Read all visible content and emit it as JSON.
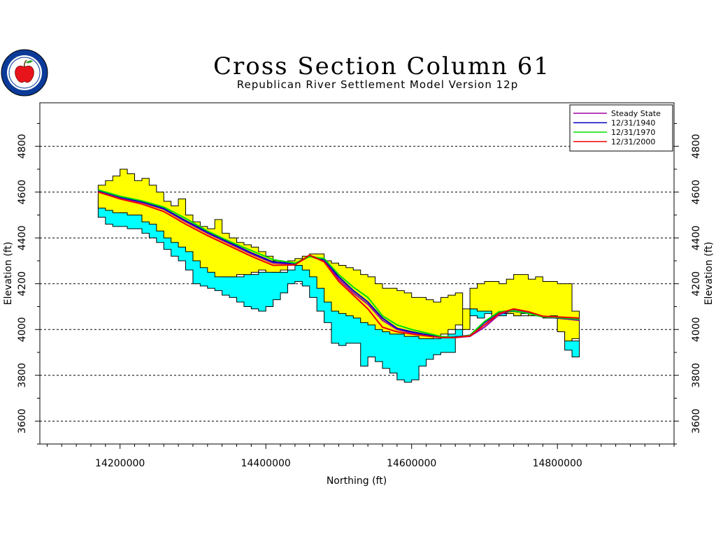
{
  "chart_data": {
    "type": "area",
    "title": "Cross Section Column 61",
    "subtitle": "Republican River Settlement Model Version 12p",
    "xlabel": "Northing (ft)",
    "ylabel_left": "Elevation (ft)",
    "ylabel_right": "Elevation (ft)",
    "xlim": [
      14090000,
      14960000
    ],
    "ylim": [
      3500,
      4990
    ],
    "x_ticks": [
      14200000,
      14400000,
      14600000,
      14800000
    ],
    "x_tick_labels": [
      "14200000",
      "14400000",
      "14600000",
      "14800000"
    ],
    "y_ticks": [
      3600,
      3800,
      4000,
      4200,
      4400,
      4600,
      4800
    ],
    "y_tick_labels": [
      "3600",
      "3800",
      "4000",
      "4200",
      "4400",
      "4600",
      "4800"
    ],
    "grid": "horizontal dashed",
    "legend_position": "top-right",
    "fills": {
      "yellow_color": "#ffff00",
      "cyan_color": "#00ffff",
      "upper_layer_top": {
        "x": [
          14170000,
          14180000,
          14190000,
          14200000,
          14210000,
          14220000,
          14230000,
          14240000,
          14250000,
          14260000,
          14270000,
          14280000,
          14290000,
          14300000,
          14310000,
          14320000,
          14330000,
          14340000,
          14350000,
          14360000,
          14370000,
          14380000,
          14390000,
          14400000,
          14410000,
          14420000,
          14430000,
          14440000,
          14450000,
          14460000,
          14470000,
          14480000,
          14490000,
          14500000,
          14510000,
          14520000,
          14530000,
          14540000,
          14550000,
          14560000,
          14570000,
          14580000,
          14590000,
          14600000,
          14610000,
          14620000,
          14630000,
          14640000,
          14650000,
          14660000,
          14670000,
          14680000,
          14690000,
          14700000,
          14710000,
          14720000,
          14730000,
          14740000,
          14750000,
          14760000,
          14770000,
          14780000,
          14790000,
          14800000,
          14810000,
          14820000,
          14830000
        ],
        "y": [
          4630,
          4650,
          4670,
          4700,
          4680,
          4650,
          4660,
          4630,
          4600,
          4560,
          4540,
          4570,
          4500,
          4470,
          4450,
          4440,
          4480,
          4420,
          4400,
          4380,
          4370,
          4360,
          4340,
          4320,
          4300,
          4290,
          4300,
          4310,
          4320,
          4330,
          4330,
          4300,
          4290,
          4280,
          4270,
          4260,
          4240,
          4230,
          4200,
          4180,
          4180,
          4170,
          4160,
          4140,
          4140,
          4130,
          4120,
          4140,
          4150,
          4160,
          4000,
          4180,
          4200,
          4210,
          4210,
          4200,
          4220,
          4240,
          4240,
          4220,
          4230,
          4210,
          4210,
          4200,
          4200,
          4080,
          4080
        ]
      },
      "upper_layer_bottom": {
        "x": [
          14170000,
          14180000,
          14190000,
          14200000,
          14210000,
          14220000,
          14230000,
          14240000,
          14250000,
          14260000,
          14270000,
          14280000,
          14290000,
          14300000,
          14310000,
          14320000,
          14330000,
          14340000,
          14350000,
          14360000,
          14370000,
          14380000,
          14390000,
          14400000,
          14410000,
          14420000,
          14430000,
          14440000,
          14450000,
          14460000,
          14470000,
          14480000,
          14490000,
          14500000,
          14510000,
          14520000,
          14530000,
          14540000,
          14550000,
          14560000,
          14570000,
          14580000,
          14590000,
          14600000,
          14610000,
          14620000,
          14630000,
          14640000,
          14650000,
          14660000,
          14670000,
          14680000,
          14690000,
          14700000,
          14710000,
          14720000,
          14730000,
          14740000,
          14750000,
          14760000,
          14770000,
          14780000,
          14790000,
          14800000,
          14810000,
          14820000,
          14830000
        ],
        "y": [
          4560,
          4530,
          4520,
          4510,
          4510,
          4500,
          4500,
          4470,
          4460,
          4430,
          4400,
          4380,
          4360,
          4340,
          4300,
          4270,
          4250,
          4230,
          4230,
          4230,
          4240,
          4240,
          4250,
          4260,
          4250,
          4250,
          4260,
          4280,
          4280,
          4260,
          4230,
          4180,
          4120,
          4080,
          4070,
          4060,
          4050,
          4030,
          4020,
          4000,
          3990,
          3980,
          3980,
          3970,
          3970,
          3960,
          3960,
          3970,
          3980,
          4000,
          4020,
          4090,
          4090,
          4080,
          4080,
          4060,
          4070,
          4070,
          4060,
          4070,
          4060,
          4060,
          4050,
          4060,
          3990,
          3950,
          3960
        ]
      },
      "lower_layer_bottom": {
        "x": [
          14170000,
          14180000,
          14190000,
          14200000,
          14210000,
          14220000,
          14230000,
          14240000,
          14250000,
          14260000,
          14270000,
          14280000,
          14290000,
          14300000,
          14310000,
          14320000,
          14330000,
          14340000,
          14350000,
          14360000,
          14370000,
          14380000,
          14390000,
          14400000,
          14410000,
          14420000,
          14430000,
          14440000,
          14450000,
          14460000,
          14470000,
          14480000,
          14490000,
          14500000,
          14510000,
          14520000,
          14530000,
          14540000,
          14550000,
          14560000,
          14570000,
          14580000,
          14590000,
          14600000,
          14610000,
          14620000,
          14630000,
          14640000,
          14650000,
          14660000,
          14670000,
          14680000,
          14690000,
          14700000,
          14710000,
          14720000,
          14730000,
          14740000,
          14750000,
          14760000,
          14770000,
          14780000,
          14790000,
          14800000,
          14810000,
          14820000,
          14830000
        ],
        "y": [
          4520,
          4490,
          4460,
          4450,
          4450,
          4440,
          4440,
          4420,
          4400,
          4380,
          4350,
          4320,
          4300,
          4260,
          4200,
          4190,
          4180,
          4170,
          4150,
          4140,
          4120,
          4100,
          4090,
          4080,
          4100,
          4130,
          4160,
          4200,
          4210,
          4190,
          4140,
          4080,
          4030,
          3940,
          3930,
          3940,
          3940,
          3840,
          3880,
          3860,
          3830,
          3810,
          3780,
          3770,
          3780,
          3840,
          3870,
          3890,
          3900,
          3900,
          3970,
          4060,
          4060,
          4050,
          4070,
          4060,
          4070,
          4070,
          4060,
          4060,
          4070,
          4060,
          4060,
          4050,
          3990,
          3910,
          3880
        ]
      }
    },
    "series": [
      {
        "name": "Steady State",
        "color": "#a000a0",
        "x": [
          14170000,
          14200000,
          14230000,
          14260000,
          14290000,
          14320000,
          14350000,
          14380000,
          14410000,
          14440000,
          14460000,
          14480000,
          14500000,
          14520000,
          14540000,
          14560000,
          14580000,
          14600000,
          14620000,
          14640000,
          14660000,
          14680000,
          14700000,
          14720000,
          14740000,
          14760000,
          14780000,
          14800000,
          14830000
        ],
        "y": [
          4605,
          4575,
          4555,
          4525,
          4470,
          4420,
          4375,
          4330,
          4290,
          4285,
          4320,
          4300,
          4220,
          4160,
          4110,
          4040,
          4000,
          3985,
          3975,
          3965,
          3965,
          3970,
          4010,
          4065,
          4085,
          4075,
          4055,
          4050,
          4040
        ]
      },
      {
        "name": "12/31/1940",
        "color": "#0000c0",
        "x": [
          14170000,
          14200000,
          14230000,
          14260000,
          14290000,
          14320000,
          14350000,
          14380000,
          14410000,
          14440000,
          14460000,
          14480000,
          14500000,
          14520000,
          14540000,
          14560000,
          14580000,
          14600000,
          14620000,
          14640000,
          14660000,
          14680000,
          14700000,
          14720000,
          14740000,
          14760000,
          14780000,
          14800000,
          14830000
        ],
        "y": [
          4607,
          4578,
          4558,
          4528,
          4475,
          4425,
          4380,
          4335,
          4295,
          4288,
          4322,
          4305,
          4230,
          4170,
          4120,
          4050,
          4005,
          3990,
          3978,
          3967,
          3967,
          3975,
          4030,
          4075,
          4080,
          4070,
          4055,
          4050,
          4045
        ]
      },
      {
        "name": "12/31/1970",
        "color": "#00dd00",
        "x": [
          14170000,
          14200000,
          14230000,
          14260000,
          14290000,
          14320000,
          14350000,
          14380000,
          14410000,
          14440000,
          14460000,
          14480000,
          14500000,
          14520000,
          14540000,
          14560000,
          14580000,
          14600000,
          14620000,
          14640000,
          14660000,
          14680000,
          14700000,
          14720000,
          14740000,
          14760000,
          14780000,
          14800000,
          14830000
        ],
        "y": [
          4610,
          4582,
          4562,
          4535,
          4485,
          4430,
          4385,
          4345,
          4305,
          4290,
          4318,
          4310,
          4240,
          4185,
          4140,
          4060,
          4020,
          4000,
          3985,
          3970,
          3965,
          3975,
          4035,
          4078,
          4082,
          4070,
          4055,
          4052,
          4045
        ]
      },
      {
        "name": "12/31/2000",
        "color": "#ee0000",
        "x": [
          14170000,
          14200000,
          14230000,
          14260000,
          14290000,
          14320000,
          14350000,
          14380000,
          14410000,
          14440000,
          14460000,
          14480000,
          14500000,
          14520000,
          14540000,
          14560000,
          14580000,
          14600000,
          14620000,
          14640000,
          14660000,
          14680000,
          14700000,
          14720000,
          14740000,
          14760000,
          14780000,
          14800000,
          14830000
        ],
        "y": [
          4600,
          4570,
          4548,
          4515,
          4460,
          4410,
          4365,
          4320,
          4280,
          4282,
          4325,
          4295,
          4210,
          4150,
          4090,
          4010,
          3990,
          3980,
          3972,
          3965,
          3965,
          3972,
          4020,
          4070,
          4090,
          4078,
          4058,
          4055,
          4050
        ]
      }
    ]
  }
}
